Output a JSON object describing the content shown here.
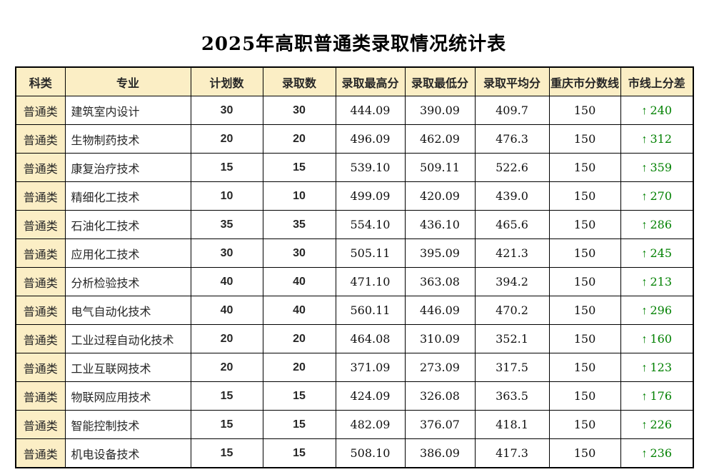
{
  "title": "2025年高职普通类录取情况统计表",
  "icons": {
    "up_arrow": "↑"
  },
  "colors": {
    "header_bg": "#fbeec5",
    "diff_green": "#008000",
    "border": "#000000"
  },
  "table": {
    "headers": [
      "科类",
      "专业",
      "计划数",
      "录取数",
      "录取最高分",
      "录取最低分",
      "录取平均分",
      "重庆市分数线",
      "市线上分差"
    ],
    "rows": [
      {
        "category": "普通类",
        "major": "建筑室内设计",
        "plan": "30",
        "admitted": "30",
        "max": "444.09",
        "min": "390.09",
        "avg": "409.7",
        "cutoff": "150",
        "diff": "240"
      },
      {
        "category": "普通类",
        "major": "生物制药技术",
        "plan": "20",
        "admitted": "20",
        "max": "496.09",
        "min": "462.09",
        "avg": "476.3",
        "cutoff": "150",
        "diff": "312"
      },
      {
        "category": "普通类",
        "major": "康复治疗技术",
        "plan": "15",
        "admitted": "15",
        "max": "539.10",
        "min": "509.11",
        "avg": "522.6",
        "cutoff": "150",
        "diff": "359"
      },
      {
        "category": "普通类",
        "major": "精细化工技术",
        "plan": "10",
        "admitted": "10",
        "max": "499.09",
        "min": "420.09",
        "avg": "439.0",
        "cutoff": "150",
        "diff": "270"
      },
      {
        "category": "普通类",
        "major": "石油化工技术",
        "plan": "35",
        "admitted": "35",
        "max": "554.10",
        "min": "436.10",
        "avg": "465.6",
        "cutoff": "150",
        "diff": "286"
      },
      {
        "category": "普通类",
        "major": "应用化工技术",
        "plan": "30",
        "admitted": "30",
        "max": "505.11",
        "min": "395.09",
        "avg": "421.3",
        "cutoff": "150",
        "diff": "245"
      },
      {
        "category": "普通类",
        "major": "分析检验技术",
        "plan": "40",
        "admitted": "40",
        "max": "471.10",
        "min": "363.08",
        "avg": "394.2",
        "cutoff": "150",
        "diff": "213"
      },
      {
        "category": "普通类",
        "major": "电气自动化技术",
        "plan": "40",
        "admitted": "40",
        "max": "560.11",
        "min": "446.09",
        "avg": "470.2",
        "cutoff": "150",
        "diff": "296"
      },
      {
        "category": "普通类",
        "major": "工业过程自动化技术",
        "plan": "20",
        "admitted": "20",
        "max": "464.08",
        "min": "310.09",
        "avg": "352.1",
        "cutoff": "150",
        "diff": "160"
      },
      {
        "category": "普通类",
        "major": "工业互联网技术",
        "plan": "20",
        "admitted": "20",
        "max": "371.09",
        "min": "273.09",
        "avg": "317.5",
        "cutoff": "150",
        "diff": "123"
      },
      {
        "category": "普通类",
        "major": "物联网应用技术",
        "plan": "15",
        "admitted": "15",
        "max": "424.09",
        "min": "326.08",
        "avg": "363.5",
        "cutoff": "150",
        "diff": "176"
      },
      {
        "category": "普通类",
        "major": "智能控制技术",
        "plan": "15",
        "admitted": "15",
        "max": "482.09",
        "min": "376.07",
        "avg": "418.1",
        "cutoff": "150",
        "diff": "226"
      },
      {
        "category": "普通类",
        "major": "机电设备技术",
        "plan": "15",
        "admitted": "15",
        "max": "508.10",
        "min": "386.09",
        "avg": "417.3",
        "cutoff": "150",
        "diff": "236"
      }
    ]
  }
}
